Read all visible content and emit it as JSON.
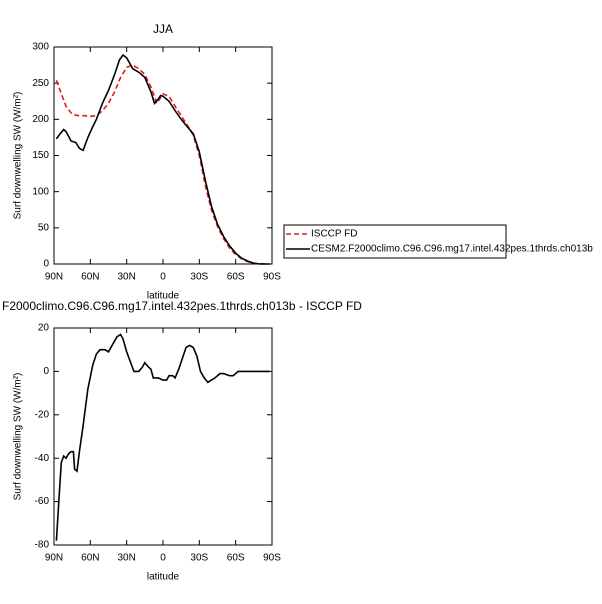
{
  "chart_data": [
    {
      "type": "line",
      "title": "JJA",
      "xlabel": "latitude",
      "ylabel": "Surf downwelling SW (W/m²)",
      "xlim": [
        90,
        -90
      ],
      "xticks": [
        {
          "value": 90,
          "label": "90N"
        },
        {
          "value": 60,
          "label": "60N"
        },
        {
          "value": 30,
          "label": "30N"
        },
        0,
        {
          "value": -30,
          "label": "30S"
        },
        {
          "value": -60,
          "label": "60S"
        },
        {
          "value": -90,
          "label": "90S"
        }
      ],
      "ylim": [
        0,
        300
      ],
      "yticks": [
        0,
        50,
        100,
        150,
        200,
        250,
        300
      ],
      "series": [
        {
          "name": "ISCCP FD",
          "color": "#e41a1c",
          "dashed": true,
          "x": [
            88,
            85,
            80,
            75,
            70,
            65,
            60,
            55,
            50,
            45,
            40,
            35,
            30,
            25,
            20,
            15,
            10,
            5,
            0,
            -5,
            -10,
            -15,
            -20,
            -25,
            -30,
            -35,
            -40,
            -45,
            -50,
            -55,
            -60,
            -65,
            -70,
            -75,
            -80,
            -85,
            -88
          ],
          "values": [
            254,
            240,
            218,
            207,
            205,
            205,
            204,
            205,
            212,
            222,
            238,
            258,
            272,
            275,
            270,
            262,
            245,
            222,
            235,
            232,
            218,
            205,
            192,
            178,
            150,
            108,
            75,
            52,
            35,
            22,
            13,
            7,
            3,
            1,
            0.5,
            0,
            0
          ]
        },
        {
          "name": "CESM2.F2000climo.C96.C96.mg17.intel.432pes.1thrds.ch013b",
          "color": "#000000",
          "dashed": false,
          "x": [
            88,
            85,
            82,
            80,
            76,
            72,
            69,
            66,
            62,
            58,
            55,
            50,
            45,
            40,
            36,
            33,
            30,
            25,
            20,
            15,
            10,
            7,
            4,
            2,
            0,
            -5,
            -10,
            -15,
            -20,
            -25,
            -30,
            -35,
            -40,
            -45,
            -50,
            -55,
            -60,
            -65,
            -70,
            -75,
            -80,
            -85,
            -88
          ],
          "values": [
            173,
            180,
            186,
            183,
            170,
            168,
            160,
            157,
            175,
            190,
            200,
            222,
            240,
            262,
            282,
            289,
            285,
            270,
            265,
            258,
            238,
            222,
            228,
            233,
            232,
            225,
            212,
            200,
            190,
            180,
            155,
            115,
            80,
            55,
            38,
            25,
            15,
            8,
            4,
            1,
            0,
            0,
            0
          ]
        }
      ]
    },
    {
      "type": "line",
      "title": "F2000climo.C96.C96.mg17.intel.432pes.1thrds.ch013b - ISCCP FD",
      "xlabel": "latitude",
      "ylabel": "Surf downwelling SW (W/m²)",
      "xlim": [
        90,
        -90
      ],
      "xticks": [
        {
          "value": 90,
          "label": "90N"
        },
        {
          "value": 60,
          "label": "60N"
        },
        {
          "value": 30,
          "label": "30N"
        },
        0,
        {
          "value": -30,
          "label": "30S"
        },
        {
          "value": -60,
          "label": "60S"
        },
        {
          "value": -90,
          "label": "90S"
        }
      ],
      "ylim": [
        -80,
        20
      ],
      "yticks": [
        -80,
        -60,
        -40,
        -20,
        0,
        20
      ],
      "series": [
        {
          "color": "#000000",
          "dashed": false,
          "x": [
            88,
            86,
            84,
            82,
            80,
            78,
            76,
            74,
            73,
            71,
            69,
            66,
            62,
            58,
            55,
            52,
            48,
            45,
            42,
            38,
            35,
            33,
            30,
            26,
            24,
            20,
            17,
            15,
            12,
            10,
            8,
            4,
            0,
            -3,
            -5,
            -8,
            -10,
            -13,
            -16,
            -19,
            -22,
            -25,
            -28,
            -31,
            -34,
            -37,
            -40,
            -43,
            -47,
            -50,
            -55,
            -58,
            -62,
            -65,
            -70,
            -75,
            -80,
            -85,
            -88
          ],
          "values": [
            -78,
            -60,
            -42,
            -39,
            -40,
            -38,
            -37,
            -37,
            -45,
            -46,
            -37,
            -25,
            -8,
            3,
            8,
            10,
            10,
            9,
            12,
            16,
            17,
            15,
            9,
            3,
            0,
            0,
            2,
            4,
            2,
            1,
            -3,
            -3,
            -4,
            -4,
            -2,
            -2,
            -3,
            1,
            6,
            11,
            12,
            11,
            7,
            0,
            -3,
            -5,
            -4,
            -3,
            -1,
            -1,
            -2,
            -2,
            0,
            0,
            0,
            0,
            0,
            0,
            0
          ]
        }
      ]
    }
  ]
}
